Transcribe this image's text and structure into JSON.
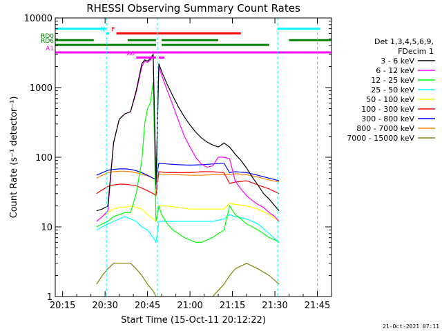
{
  "chart_data": {
    "type": "line",
    "title": "RHESSI Observing Summary Count Rates",
    "xlabel": "Start Time (15-Oct-11 20:12:22)",
    "ylabel": "Count Rate (s⁻¹ detector⁻¹)",
    "y_scale": "log",
    "xlim": [
      12.4,
      110
    ],
    "ylim": [
      1,
      10000
    ],
    "x_ticks": [
      {
        "value": 15,
        "label": "20:15"
      },
      {
        "value": 30,
        "label": "20:30"
      },
      {
        "value": 45,
        "label": "20:45"
      },
      {
        "value": 60,
        "label": "21:00"
      },
      {
        "value": 75,
        "label": "21:15"
      },
      {
        "value": 90,
        "label": "21:30"
      },
      {
        "value": 105,
        "label": "21:45"
      }
    ],
    "y_ticks": [
      {
        "value": 1,
        "label": "1"
      },
      {
        "value": 10,
        "label": "10"
      },
      {
        "value": 100,
        "label": "100"
      },
      {
        "value": 1000,
        "label": "1000"
      },
      {
        "value": 10000,
        "label": "10000"
      }
    ],
    "legend_header": [
      "Det 1,3,4,5,6,9,",
      "FDecim 1"
    ],
    "legend_position": "right",
    "grid": false,
    "timestamp": "21-Oct-2021 07:11",
    "night_boundaries": [
      30.5,
      48.5,
      91,
      105
    ],
    "series": [
      {
        "name": "3 - 6 keV",
        "color": "#000000",
        "x": [
          27,
          29,
          31,
          33,
          35,
          37,
          39,
          41,
          43,
          44,
          45,
          46,
          47,
          48,
          49,
          50,
          52,
          54,
          56,
          58,
          60,
          62,
          64,
          66,
          68,
          70,
          72,
          74,
          76,
          78,
          80,
          82,
          84,
          86,
          88,
          90,
          91.5
        ],
        "y": [
          17,
          18,
          20,
          160,
          350,
          420,
          450,
          900,
          2200,
          2500,
          2400,
          2600,
          3000,
          40,
          2200,
          1700,
          1100,
          750,
          520,
          380,
          290,
          230,
          190,
          165,
          150,
          140,
          160,
          140,
          110,
          90,
          70,
          52,
          40,
          30,
          25,
          20,
          17
        ]
      },
      {
        "name": "6 - 12 keV",
        "color": "#ff00ff",
        "x": [
          27,
          29,
          31,
          33,
          35,
          37,
          39,
          41,
          43,
          44,
          45,
          46,
          47,
          48,
          49,
          50,
          52,
          54,
          56,
          58,
          60,
          62,
          64,
          66,
          68,
          70,
          72,
          74,
          76,
          78,
          80,
          82,
          84,
          86,
          88,
          90,
          91.5
        ],
        "y": [
          12,
          14,
          17,
          160,
          350,
          420,
          450,
          850,
          2000,
          2400,
          2300,
          2500,
          2800,
          35,
          2000,
          1500,
          900,
          550,
          330,
          200,
          140,
          100,
          80,
          72,
          75,
          100,
          100,
          95,
          45,
          35,
          28,
          24,
          21,
          19,
          16,
          14,
          12
        ]
      },
      {
        "name": "12 - 25 keV",
        "color": "#00ff00",
        "x": [
          27,
          29,
          31,
          33,
          35,
          37,
          39,
          41,
          43,
          44,
          45,
          46,
          47,
          48,
          49,
          50,
          52,
          54,
          56,
          58,
          60,
          62,
          64,
          66,
          68,
          70,
          72,
          74,
          76,
          78,
          80,
          82,
          84,
          86,
          88,
          90,
          91.5
        ],
        "y": [
          10,
          11,
          12,
          14,
          15,
          16,
          16,
          30,
          90,
          300,
          500,
          600,
          1200,
          12,
          20,
          15,
          11,
          9,
          8,
          7,
          6.5,
          6,
          6,
          6.5,
          7,
          8,
          9,
          20,
          15,
          13,
          11,
          10,
          9,
          8,
          7,
          6.5,
          6
        ]
      },
      {
        "name": "25 - 50 keV",
        "color": "#00ffff",
        "x": [
          27,
          29,
          31,
          33,
          35,
          37,
          39,
          41,
          43,
          45,
          47,
          48,
          49,
          52,
          56,
          60,
          64,
          68,
          72,
          74,
          76,
          80,
          84,
          88,
          91.5
        ],
        "y": [
          9,
          10,
          11,
          12,
          13,
          14,
          13,
          12,
          10,
          9,
          7,
          6,
          12,
          12,
          12,
          12,
          12,
          12,
          13,
          15,
          14,
          13,
          11,
          8,
          6
        ]
      },
      {
        "name": "50 - 100 keV",
        "color": "#ffff00",
        "x": [
          27,
          29,
          31,
          33,
          35,
          37,
          39,
          41,
          43,
          45,
          47,
          48,
          49,
          52,
          56,
          60,
          64,
          68,
          72,
          74,
          76,
          80,
          84,
          88,
          91.5
        ],
        "y": [
          12,
          14,
          16,
          18,
          19,
          19,
          20,
          19,
          18,
          15,
          13,
          12,
          20,
          20,
          19,
          18,
          18,
          18,
          18,
          22,
          21,
          20,
          18,
          15,
          12
        ]
      },
      {
        "name": "100 - 300 keV",
        "color": "#ff0000",
        "x": [
          27,
          29,
          31,
          33,
          35,
          37,
          39,
          41,
          43,
          45,
          47,
          48,
          49,
          52,
          56,
          60,
          64,
          68,
          72,
          74,
          76,
          80,
          84,
          88,
          91.5
        ],
        "y": [
          30,
          34,
          38,
          40,
          41,
          41,
          40,
          39,
          36,
          33,
          30,
          28,
          62,
          60,
          60,
          60,
          62,
          62,
          60,
          42,
          44,
          46,
          40,
          35,
          30
        ]
      },
      {
        "name": "300 - 800 keV",
        "color": "#0000ff",
        "x": [
          27,
          29,
          31,
          33,
          35,
          37,
          39,
          41,
          43,
          45,
          47,
          48,
          49,
          52,
          56,
          60,
          64,
          68,
          72,
          74,
          76,
          80,
          84,
          88,
          91.5
        ],
        "y": [
          55,
          60,
          65,
          67,
          68,
          68,
          67,
          64,
          60,
          55,
          50,
          48,
          82,
          80,
          78,
          77,
          78,
          80,
          82,
          60,
          62,
          60,
          55,
          50,
          46
        ]
      },
      {
        "name": "800 - 7000 keV",
        "color": "#ff8000",
        "x": [
          27,
          29,
          31,
          33,
          35,
          37,
          39,
          41,
          43,
          45,
          47,
          48,
          49,
          52,
          56,
          60,
          64,
          68,
          72,
          74,
          76,
          80,
          84,
          88,
          91.5
        ],
        "y": [
          50,
          55,
          60,
          62,
          63,
          63,
          62,
          60,
          57,
          54,
          50,
          48,
          57,
          57,
          56,
          55,
          55,
          56,
          56,
          56,
          58,
          56,
          52,
          47,
          44
        ]
      },
      {
        "name": "7000 - 15000 keV",
        "color": "#808000",
        "x": [
          27,
          29,
          31,
          33,
          35,
          37,
          39,
          41,
          43,
          45,
          47,
          48,
          49,
          52,
          56,
          60,
          64,
          68,
          72,
          74,
          76,
          80,
          84,
          88,
          91.5
        ],
        "y": [
          1.5,
          2,
          2.5,
          3,
          3,
          3,
          3,
          2.5,
          2,
          1.5,
          1.2,
          1,
          1,
          1,
          1,
          1,
          1,
          1,
          1.5,
          2,
          2.5,
          3,
          2.5,
          2,
          1.5
        ]
      }
    ],
    "flag_bars": [
      {
        "label": "",
        "color": "#00ffff",
        "y": 7000,
        "segments": [
          [
            12.4,
            30.2
          ],
          [
            91,
            106
          ]
        ]
      },
      {
        "label": "N",
        "color": "#00ffff",
        "y": 6000,
        "segments": [
          [
            30.5,
            31.5
          ]
        ]
      },
      {
        "label": "F",
        "color": "#ff0000",
        "y": 6000,
        "segments": [
          [
            34,
            78
          ]
        ]
      },
      {
        "label": "RD0",
        "color": "#008000",
        "y": 4800,
        "segments": [
          [
            12.4,
            26
          ],
          [
            38,
            48
          ],
          [
            50,
            70
          ],
          [
            95,
            110
          ]
        ]
      },
      {
        "label": "RD6",
        "color": "#008000",
        "y": 4100,
        "segments": [
          [
            12.4,
            48
          ],
          [
            50,
            88
          ]
        ]
      },
      {
        "label": "A0",
        "color": "#ff00ff",
        "y": 2700,
        "segments": [
          [
            41,
            48
          ],
          [
            49,
            51
          ]
        ]
      },
      {
        "label": "A1",
        "color": "#ff00ff",
        "y": 3200,
        "segments": [
          [
            12.4,
            110
          ]
        ]
      }
    ]
  }
}
